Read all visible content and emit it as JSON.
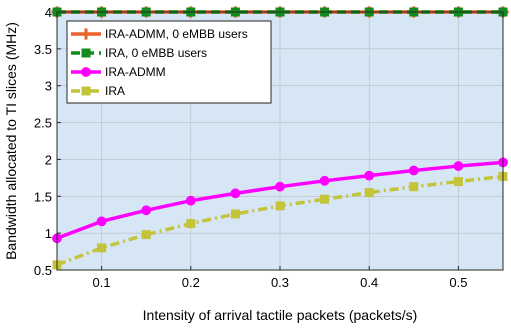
{
  "chart_data": {
    "type": "line",
    "title": "",
    "xlabel": "Intensity of arrival tactile packets (packets/s)",
    "ylabel": "Bandwidth allocated to TI slices (MHz)",
    "xlim": [
      0.05,
      0.55
    ],
    "ylim": [
      0.5,
      4
    ],
    "xticks": [
      "0.1",
      "0.2",
      "0.3",
      "0.4",
      "0.5"
    ],
    "yticks": [
      "0.5",
      "1",
      "1.5",
      "2",
      "2.5",
      "3",
      "3.5",
      "4"
    ],
    "grid": true,
    "legend_position": "top-left",
    "x": [
      0.05,
      0.1,
      0.15,
      0.2,
      0.25,
      0.3,
      0.35,
      0.4,
      0.45,
      0.5,
      0.55
    ],
    "series": [
      {
        "name": "IRA-ADMM, 0 eMBB users",
        "color": "#e8622c",
        "marker": "plus",
        "dash": "solid",
        "values": [
          4,
          4,
          4,
          4,
          4,
          4,
          4,
          4,
          4,
          4,
          4
        ]
      },
      {
        "name": "IRA, 0 eMBB users",
        "color": "#138a1d",
        "marker": "square",
        "dash": "dash",
        "values": [
          4,
          4,
          4,
          4,
          4,
          4,
          4,
          4,
          4,
          4,
          4
        ]
      },
      {
        "name": "IRA-ADMM",
        "color": "#ff00ff",
        "marker": "circle",
        "dash": "solid",
        "values": [
          0.93,
          1.16,
          1.31,
          1.44,
          1.54,
          1.63,
          1.71,
          1.78,
          1.85,
          1.91,
          1.96
        ]
      },
      {
        "name": "IRA",
        "color": "#c4c43a",
        "marker": "square",
        "dash": "dashdot",
        "values": [
          0.57,
          0.8,
          0.98,
          1.13,
          1.26,
          1.37,
          1.46,
          1.55,
          1.63,
          1.7,
          1.77
        ]
      }
    ],
    "colors": {
      "plot_background": "#d6e6f5",
      "grid": "#bbbbbb",
      "axis": "#262626"
    }
  }
}
